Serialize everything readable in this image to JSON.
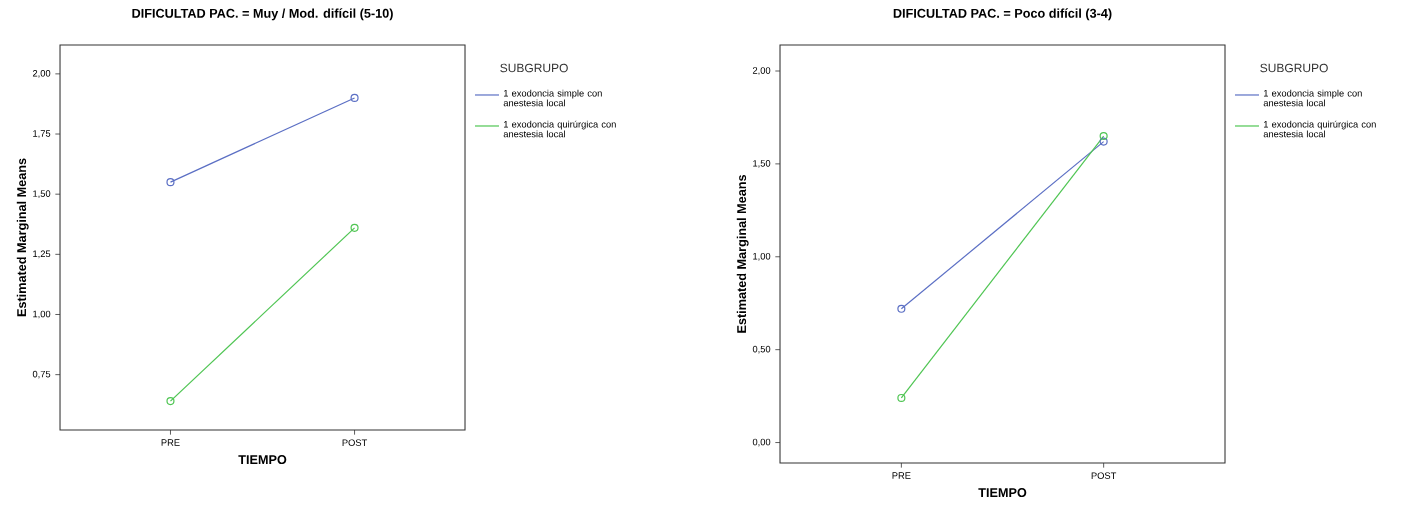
{
  "chart_data": [
    {
      "type": "line",
      "title": "DIFICULTAD PAC. = Muy / Mod. difícil (5-10)",
      "xlabel": "TIEMPO",
      "ylabel": "Estimated Marginal Means",
      "legend_title": "SUBGRUPO",
      "categories": [
        "PRE",
        "POST"
      ],
      "series": [
        {
          "name": "1 exodoncia simple con anestesia local",
          "color": "#5b6fc4",
          "values": [
            1.55,
            1.9
          ]
        },
        {
          "name": "1 exodoncia quirúrgica con anestesia local",
          "color": "#4fc553",
          "values": [
            0.64,
            1.36
          ]
        }
      ],
      "ylim": [
        0.52,
        2.12
      ],
      "yticks": [
        {
          "value": 0.75,
          "label": "0,75"
        },
        {
          "value": 1.0,
          "label": "1,00"
        },
        {
          "value": 1.25,
          "label": "1,25"
        },
        {
          "value": 1.5,
          "label": "1,50"
        },
        {
          "value": 1.75,
          "label": "1,75"
        },
        {
          "value": 2.0,
          "label": "2,00"
        }
      ],
      "marker": "circle",
      "legend": "right",
      "grid": false
    },
    {
      "type": "line",
      "title": "DIFICULTAD PAC. = Poco difícil (3-4)",
      "xlabel": "TIEMPO",
      "ylabel": "Estimated Marginal Means",
      "legend_title": "SUBGRUPO",
      "categories": [
        "PRE",
        "POST"
      ],
      "series": [
        {
          "name": "1 exodoncia simple con anestesia local",
          "color": "#5b6fc4",
          "values": [
            0.72,
            1.62
          ]
        },
        {
          "name": "1 exodoncia quirúrgica con anestesia local",
          "color": "#4fc553",
          "values": [
            0.24,
            1.65
          ]
        }
      ],
      "ylim": [
        -0.11,
        2.14
      ],
      "yticks": [
        {
          "value": 0.0,
          "label": "0,00"
        },
        {
          "value": 0.5,
          "label": "0,50"
        },
        {
          "value": 1.0,
          "label": "1,00"
        },
        {
          "value": 1.5,
          "label": "1,50"
        },
        {
          "value": 2.0,
          "label": "2,00"
        }
      ],
      "marker": "circle",
      "legend": "right",
      "grid": false
    }
  ]
}
